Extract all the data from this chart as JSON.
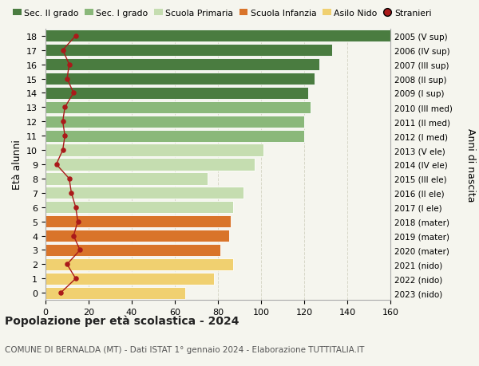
{
  "ages": [
    18,
    17,
    16,
    15,
    14,
    13,
    12,
    11,
    10,
    9,
    8,
    7,
    6,
    5,
    4,
    3,
    2,
    1,
    0
  ],
  "right_labels": [
    "2005 (V sup)",
    "2006 (IV sup)",
    "2007 (III sup)",
    "2008 (II sup)",
    "2009 (I sup)",
    "2010 (III med)",
    "2011 (II med)",
    "2012 (I med)",
    "2013 (V ele)",
    "2014 (IV ele)",
    "2015 (III ele)",
    "2016 (II ele)",
    "2017 (I ele)",
    "2018 (mater)",
    "2019 (mater)",
    "2020 (mater)",
    "2021 (nido)",
    "2022 (nido)",
    "2023 (nido)"
  ],
  "bar_values": [
    160,
    133,
    127,
    125,
    122,
    123,
    120,
    120,
    101,
    97,
    75,
    92,
    87,
    86,
    85,
    81,
    87,
    78,
    65
  ],
  "bar_colors": [
    "#4a7c40",
    "#4a7c40",
    "#4a7c40",
    "#4a7c40",
    "#4a7c40",
    "#8ab87a",
    "#8ab87a",
    "#8ab87a",
    "#c5ddb0",
    "#c5ddb0",
    "#c5ddb0",
    "#c5ddb0",
    "#c5ddb0",
    "#d9742a",
    "#d9742a",
    "#d9742a",
    "#f0d070",
    "#f0d070",
    "#f0d070"
  ],
  "stranieri_values": [
    14,
    8,
    11,
    10,
    13,
    9,
    8,
    9,
    8,
    5,
    11,
    12,
    14,
    15,
    13,
    16,
    10,
    14,
    7
  ],
  "title_bold": "Popolazione per età scolastica - 2024",
  "subtitle": "COMUNE DI BERNALDA (MT) - Dati ISTAT 1° gennaio 2024 - Elaborazione TUTTITALIA.IT",
  "ylabel": "Età alunni",
  "right_ylabel": "Anni di nascita",
  "xlim": [
    0,
    160
  ],
  "xticks": [
    0,
    20,
    40,
    60,
    80,
    100,
    120,
    140,
    160
  ],
  "legend_labels": [
    "Sec. II grado",
    "Sec. I grado",
    "Scuola Primaria",
    "Scuola Infanzia",
    "Asilo Nido",
    "Stranieri"
  ],
  "legend_colors": [
    "#4a7c40",
    "#8ab87a",
    "#c5ddb0",
    "#d9742a",
    "#f0d070",
    "#c0282a"
  ],
  "bar_height": 0.85,
  "bg_color": "#f5f5ee",
  "grid_color": "#d8d8c8",
  "stranieri_line_color": "#aa1a1a",
  "stranieri_dot_color": "#aa1a1a"
}
